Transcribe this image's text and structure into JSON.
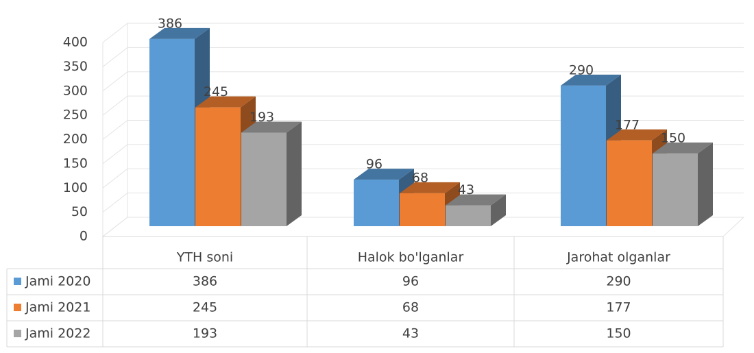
{
  "chart_data": {
    "type": "bar3d",
    "categories": [
      "YTH soni",
      "Halok bo'lganlar",
      "Jarohat olganlar"
    ],
    "series": [
      {
        "name": "Jami 2020",
        "color": "#5b9bd5",
        "values": [
          386,
          96,
          290
        ]
      },
      {
        "name": "Jami 2021",
        "color": "#ed7d31",
        "values": [
          245,
          68,
          177
        ]
      },
      {
        "name": "Jami 2022",
        "color": "#a5a5a5",
        "values": [
          193,
          43,
          150
        ]
      }
    ],
    "ylim": [
      0,
      400
    ],
    "yticks": [
      0,
      50,
      100,
      150,
      200,
      250,
      300,
      350,
      400
    ],
    "grid": true,
    "data_table": true
  }
}
